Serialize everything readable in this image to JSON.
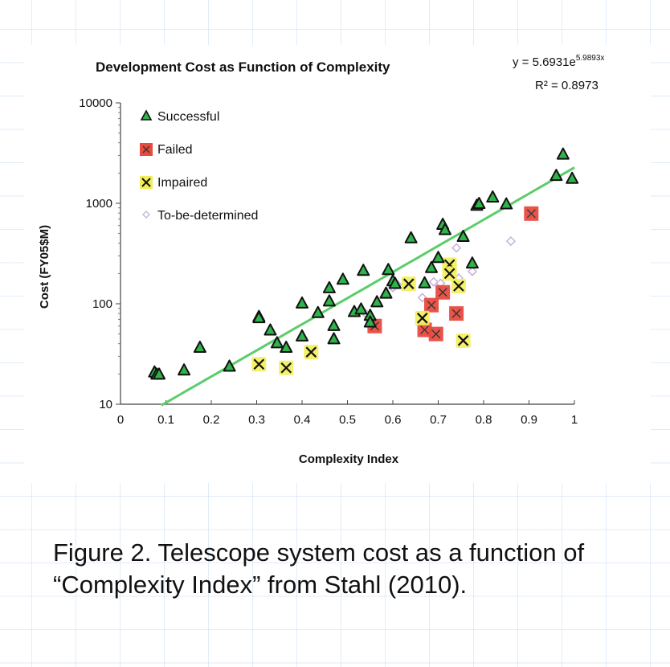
{
  "caption": "Figure 2. Telescope system cost as a function of “Complexity Index” from Stahl (2010).",
  "chart_data": {
    "type": "scatter",
    "title": "Development Cost as Function of Complexity",
    "xlabel": "Complexity Index",
    "ylabel": "Cost (FY05$M)",
    "xlim": [
      0,
      1
    ],
    "ylim": [
      10,
      10000
    ],
    "yscale": "log",
    "xticks": [
      "0",
      "0.1",
      "0.2",
      "0.3",
      "0.4",
      "0.5",
      "0.6",
      "0.7",
      "0.8",
      "0.9",
      "1"
    ],
    "yticks": [
      "10",
      "100",
      "1000",
      "10000"
    ],
    "grid": false,
    "legend_position": "top-left",
    "trendline": {
      "type": "exponential",
      "equation": "y = 5.6931e",
      "exponent": "5.9893x",
      "r2_label": "R² = 0.8973",
      "a": 5.6931,
      "b": 5.9893,
      "x_range": [
        0.09,
        1.0
      ],
      "color": "#5ccd6a"
    },
    "series": [
      {
        "name": "Successful",
        "marker": "triangle",
        "color": "#2fb34a",
        "points": [
          [
            0.075,
            21
          ],
          [
            0.08,
            20
          ],
          [
            0.085,
            20
          ],
          [
            0.14,
            22
          ],
          [
            0.175,
            37
          ],
          [
            0.24,
            24
          ],
          [
            0.305,
            75
          ],
          [
            0.305,
            73
          ],
          [
            0.33,
            55
          ],
          [
            0.345,
            41
          ],
          [
            0.365,
            37
          ],
          [
            0.4,
            48
          ],
          [
            0.4,
            102
          ],
          [
            0.435,
            82
          ],
          [
            0.46,
            145
          ],
          [
            0.46,
            107
          ],
          [
            0.47,
            61
          ],
          [
            0.47,
            45
          ],
          [
            0.49,
            176
          ],
          [
            0.515,
            84
          ],
          [
            0.53,
            89
          ],
          [
            0.535,
            216
          ],
          [
            0.55,
            77
          ],
          [
            0.55,
            66
          ],
          [
            0.565,
            105
          ],
          [
            0.585,
            128
          ],
          [
            0.59,
            220
          ],
          [
            0.6,
            170
          ],
          [
            0.605,
            160
          ],
          [
            0.64,
            455
          ],
          [
            0.67,
            162
          ],
          [
            0.685,
            230
          ],
          [
            0.7,
            290
          ],
          [
            0.71,
            620
          ],
          [
            0.715,
            550
          ],
          [
            0.755,
            470
          ],
          [
            0.775,
            255
          ],
          [
            0.785,
            960
          ],
          [
            0.79,
            1000
          ],
          [
            0.82,
            1160
          ],
          [
            0.85,
            990
          ],
          [
            0.96,
            1900
          ],
          [
            0.975,
            3100
          ],
          [
            0.995,
            1780
          ]
        ]
      },
      {
        "name": "Failed",
        "marker": "square-x",
        "color": "#e84a3f",
        "points": [
          [
            0.56,
            60
          ],
          [
            0.67,
            55
          ],
          [
            0.685,
            97
          ],
          [
            0.695,
            50
          ],
          [
            0.71,
            130
          ],
          [
            0.74,
            80
          ],
          [
            0.905,
            790
          ]
        ]
      },
      {
        "name": "Impaired",
        "marker": "x",
        "color": "#f2ee5a",
        "points": [
          [
            0.305,
            25
          ],
          [
            0.365,
            23
          ],
          [
            0.42,
            33
          ],
          [
            0.635,
            158
          ],
          [
            0.665,
            72
          ],
          [
            0.725,
            245
          ],
          [
            0.725,
            200
          ],
          [
            0.745,
            150
          ],
          [
            0.755,
            43
          ]
        ]
      },
      {
        "name": "To-be-determined",
        "marker": "diamond",
        "color": "#c8b4e0",
        "points": [
          [
            0.54,
            80
          ],
          [
            0.6,
            145
          ],
          [
            0.61,
            155
          ],
          [
            0.665,
            115
          ],
          [
            0.69,
            165
          ],
          [
            0.705,
            160
          ],
          [
            0.74,
            360
          ],
          [
            0.745,
            180
          ],
          [
            0.775,
            210
          ],
          [
            0.86,
            420
          ]
        ]
      }
    ]
  }
}
